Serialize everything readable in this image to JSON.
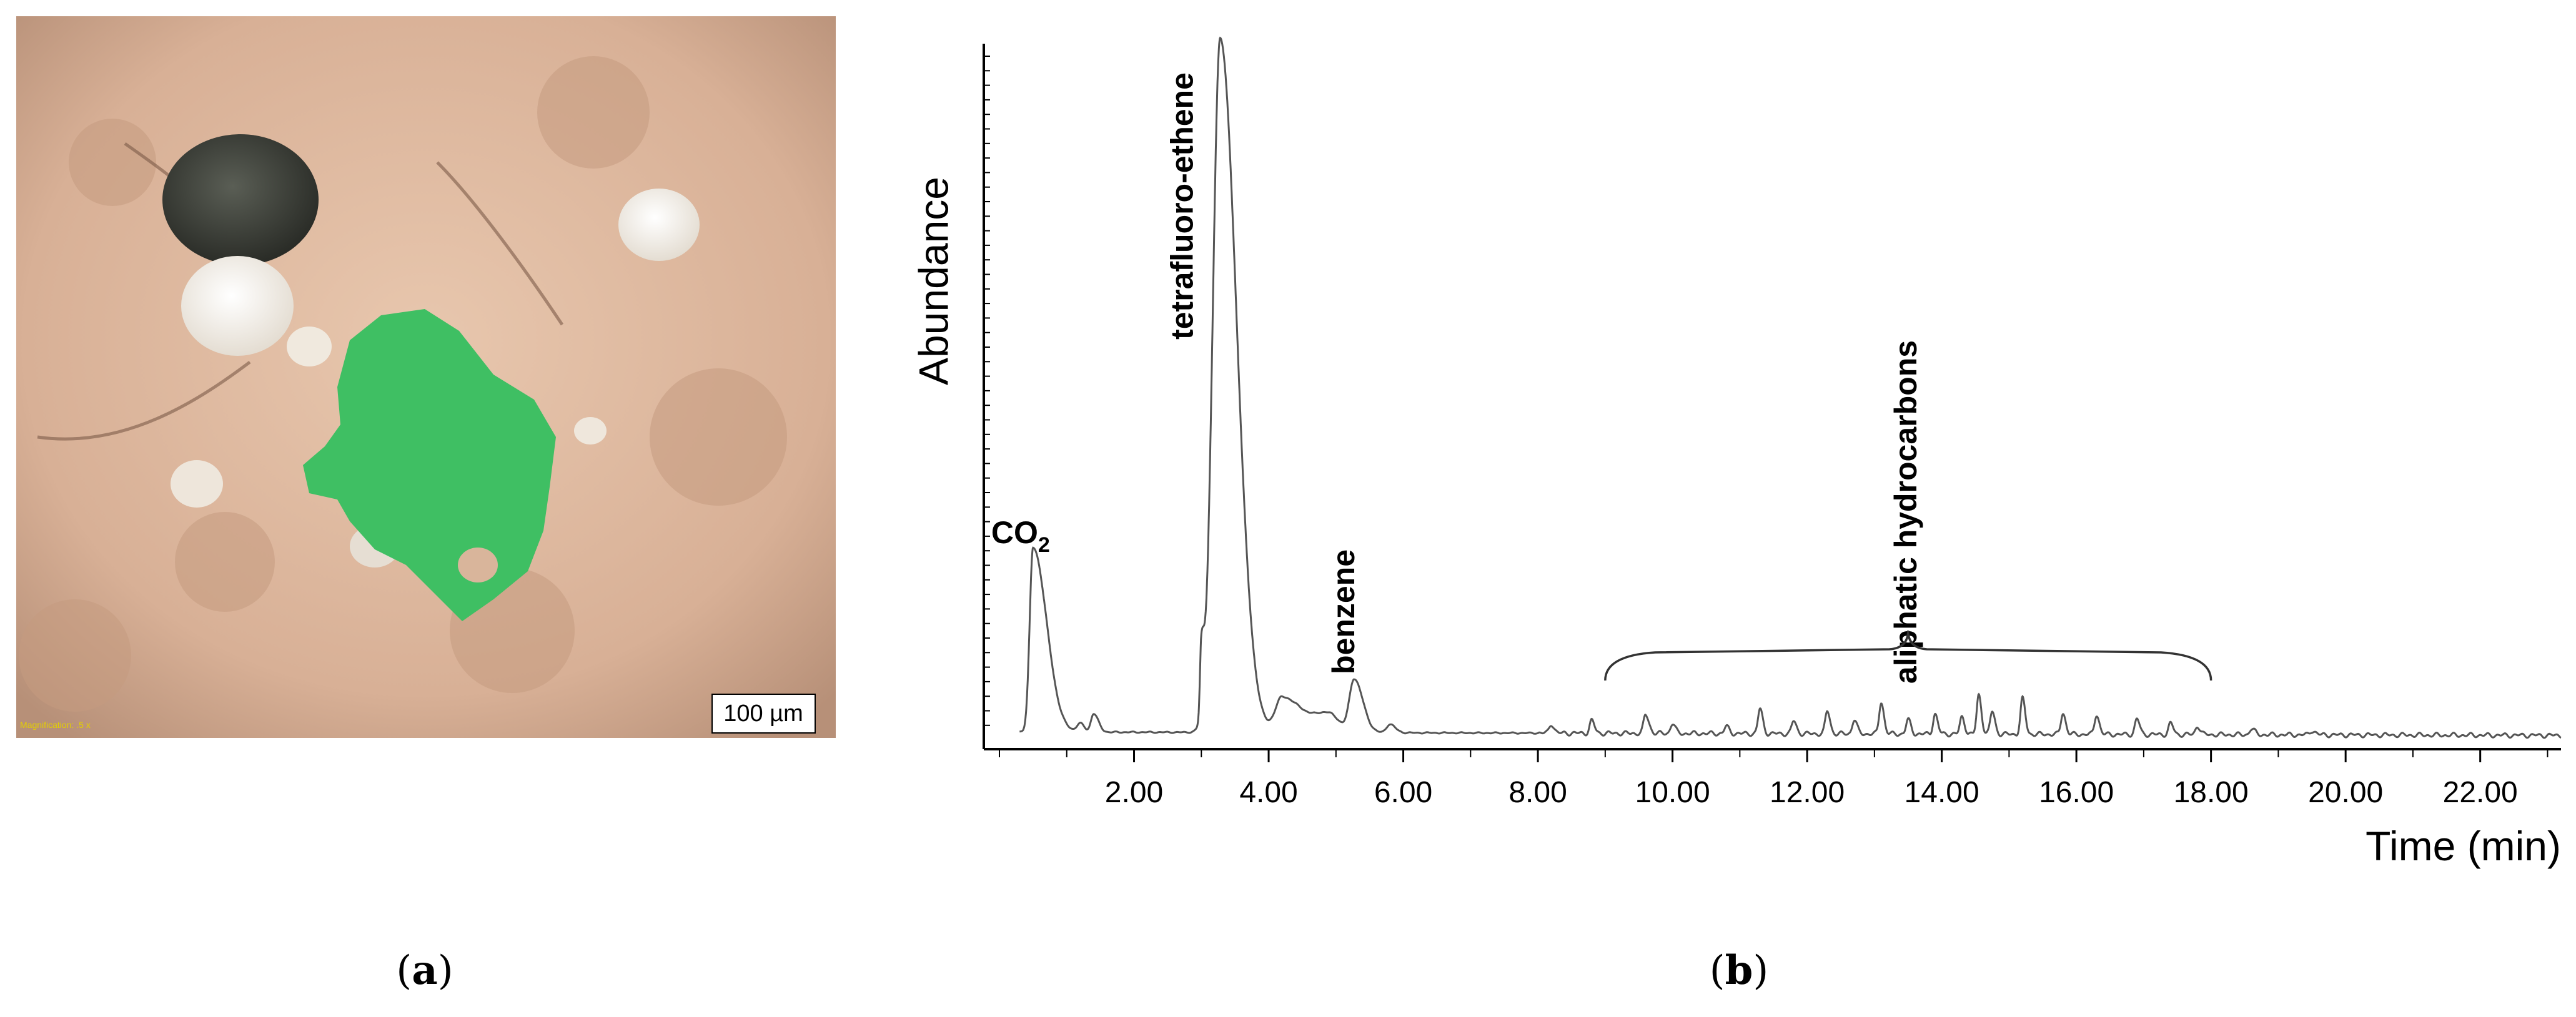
{
  "panel_a": {
    "label": "(a)",
    "label_letter": "a",
    "scale_bar_text": "100 µm",
    "magnification_text": "Magnification: .5 x",
    "colors": {
      "soil": "#dcb49a",
      "particle": "#3fbf63",
      "dark_grain": "#3a3d36",
      "white_grain": "#f3efe7"
    }
  },
  "panel_b": {
    "label": "(b)",
    "label_letter": "b",
    "bracket_label": "aliphatic hydrocarbons"
  },
  "chart_data": {
    "type": "line",
    "xlabel": "Time (min)",
    "ylabel": "Abundance",
    "xlim": [
      0.0,
      23.2
    ],
    "ylim": [
      0,
      100
    ],
    "x_ticks": [
      "2.00",
      "4.00",
      "6.00",
      "8.00",
      "10.00",
      "12.00",
      "14.00",
      "16.00",
      "18.00",
      "20.00",
      "22.00"
    ],
    "grid": false,
    "series": [
      {
        "color": "#555555",
        "baseline": 2.0,
        "peaks": [
          {
            "x": 0.5,
            "height": 26,
            "width_left": 0.05,
            "width_right": 0.2
          },
          {
            "x": 1.2,
            "height": 1.2,
            "width_left": 0.05,
            "width_right": 0.06
          },
          {
            "x": 1.4,
            "height": 2.6,
            "width_left": 0.04,
            "width_right": 0.07
          },
          {
            "x": 3.0,
            "height": 10,
            "width_left": 0.02,
            "width_right": 0.04
          },
          {
            "x": 3.28,
            "height": 98,
            "width_left": 0.11,
            "width_right": 0.24
          },
          {
            "x": 4.2,
            "height": 5,
            "width_left": 0.1,
            "width_right": 0.3
          },
          {
            "x": 4.9,
            "height": 2.5,
            "width_left": 0.2,
            "width_right": 0.15
          },
          {
            "x": 5.27,
            "height": 7.5,
            "width_left": 0.07,
            "width_right": 0.13
          },
          {
            "x": 5.8,
            "height": 1.2,
            "width_left": 0.05,
            "width_right": 0.08
          },
          {
            "x": 8.2,
            "height": 1.3,
            "width_left": 0.03,
            "width_right": 0.04
          },
          {
            "x": 8.8,
            "height": 1.8,
            "width_left": 0.03,
            "width_right": 0.04
          },
          {
            "x": 9.6,
            "height": 2.6,
            "width_left": 0.03,
            "width_right": 0.05
          },
          {
            "x": 10.0,
            "height": 1.4,
            "width_left": 0.03,
            "width_right": 0.04
          },
          {
            "x": 10.8,
            "height": 1.0,
            "width_left": 0.03,
            "width_right": 0.04
          },
          {
            "x": 11.3,
            "height": 3.5,
            "width_left": 0.03,
            "width_right": 0.04
          },
          {
            "x": 11.8,
            "height": 1.8,
            "width_left": 0.03,
            "width_right": 0.04
          },
          {
            "x": 12.3,
            "height": 3.2,
            "width_left": 0.03,
            "width_right": 0.04
          },
          {
            "x": 12.7,
            "height": 2.0,
            "width_left": 0.03,
            "width_right": 0.04
          },
          {
            "x": 13.1,
            "height": 4.5,
            "width_left": 0.03,
            "width_right": 0.04
          },
          {
            "x": 13.5,
            "height": 2.0,
            "width_left": 0.03,
            "width_right": 0.04
          },
          {
            "x": 13.9,
            "height": 2.8,
            "width_left": 0.03,
            "width_right": 0.04
          },
          {
            "x": 14.3,
            "height": 2.4,
            "width_left": 0.03,
            "width_right": 0.04
          },
          {
            "x": 14.55,
            "height": 5.5,
            "width_left": 0.03,
            "width_right": 0.04
          },
          {
            "x": 14.75,
            "height": 3.2,
            "width_left": 0.03,
            "width_right": 0.04
          },
          {
            "x": 15.2,
            "height": 5.0,
            "width_left": 0.03,
            "width_right": 0.04
          },
          {
            "x": 15.8,
            "height": 3.0,
            "width_left": 0.03,
            "width_right": 0.04
          },
          {
            "x": 16.3,
            "height": 2.8,
            "width_left": 0.03,
            "width_right": 0.04
          },
          {
            "x": 16.9,
            "height": 2.2,
            "width_left": 0.03,
            "width_right": 0.04
          },
          {
            "x": 17.4,
            "height": 1.6,
            "width_left": 0.03,
            "width_right": 0.04
          },
          {
            "x": 17.8,
            "height": 1.2,
            "width_left": 0.03,
            "width_right": 0.04
          },
          {
            "x": 18.6,
            "height": 0.8,
            "width_left": 0.03,
            "width_right": 0.05
          },
          {
            "x": 19.5,
            "height": 0.6,
            "width_left": 0.03,
            "width_right": 0.05
          }
        ]
      }
    ],
    "annotations": [
      {
        "text": "CO",
        "subscript": "2",
        "x": 0.5,
        "orientation": "horizontal"
      },
      {
        "text": "tetrafluoro-ethene",
        "x": 2.75,
        "orientation": "vertical"
      },
      {
        "text": "benzene",
        "x": 5.15,
        "orientation": "vertical"
      },
      {
        "text": "aliphatic hydrocarbons",
        "x": 13.5,
        "orientation": "vertical"
      }
    ],
    "bracket": {
      "x_start": 9.0,
      "x_end": 18.0
    }
  }
}
